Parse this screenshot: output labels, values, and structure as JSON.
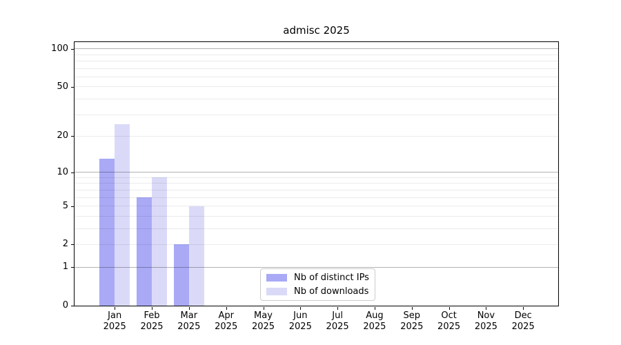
{
  "chart_data": {
    "type": "bar",
    "title": "admisc 2025",
    "categories": [
      "Jan",
      "Feb",
      "Mar",
      "Apr",
      "May",
      "Jun",
      "Jul",
      "Aug",
      "Sep",
      "Oct",
      "Nov",
      "Dec"
    ],
    "year": "2025",
    "series": [
      {
        "id": "distinct-ips",
        "name": "Nb of distinct IPs",
        "color": "#a9a9f6",
        "values": [
          13,
          6,
          2,
          0,
          0,
          0,
          0,
          0,
          0,
          0,
          0,
          0
        ]
      },
      {
        "id": "downloads",
        "name": "Nb of downloads",
        "color": "#dadaf8",
        "values": [
          25,
          9,
          5,
          0,
          0,
          0,
          0,
          0,
          0,
          0,
          0,
          0
        ]
      }
    ],
    "yscale": "log1p",
    "ylim": [
      0,
      113
    ],
    "ytick_values": [
      0,
      1,
      2,
      5,
      10,
      20,
      50,
      100
    ],
    "ytick_labels": [
      "0",
      "1",
      "2",
      "5",
      "10",
      "20",
      "50",
      "100"
    ],
    "major_gridlines": [
      1,
      10,
      100
    ],
    "minor_gridlines": [
      2,
      3,
      4,
      5,
      6,
      7,
      8,
      9,
      20,
      30,
      40,
      50,
      60,
      70,
      80,
      90
    ],
    "legend_position": "lower center",
    "grid": "on"
  }
}
